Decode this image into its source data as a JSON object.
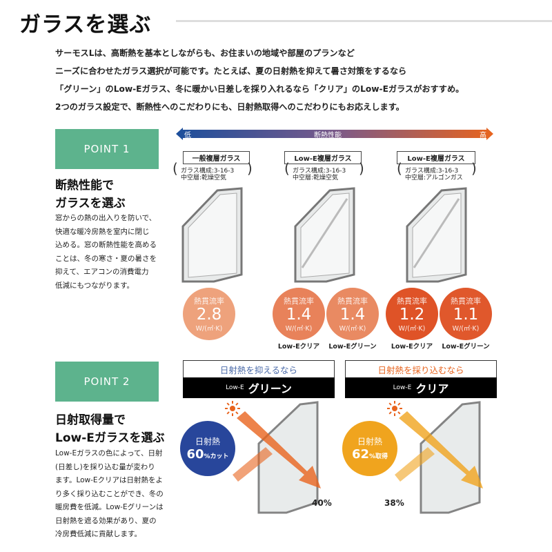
{
  "title": "ガラスを選ぶ",
  "intro": [
    "サーモスLは、高断熱を基本としながらも、お住まいの地域や部屋のプランなど",
    "ニーズに合わせたガラス選択が可能です。たとえば、夏の日射熱を抑えて暑さ対策をするなら",
    "「グリーン」のLow-Eガラス、冬に暖かい日差しを採り入れるなら「クリア」のLow-Eガラスがおすすめ。",
    "2つのガラス設定で、断熱性へのこだわりにも、日射熱取得へのこだわりにもお応えします。"
  ],
  "point1": {
    "label": "POINT 1",
    "heading": [
      "断熱性能で",
      "ガラスを選ぶ"
    ],
    "body": [
      "窓からの熱の出入りを防いで、",
      "快適な暖冷房熱を室内に閉じ",
      "込める。窓の断熱性能を高める",
      "ことは、冬の寒さ・夏の暑さを",
      "抑えて、エアコンの消費電力",
      "低減にもつながります。"
    ],
    "scale": {
      "low": "低",
      "label": "断熱性能",
      "high": "高",
      "colors": [
        "#1c4f9c",
        "#e8641e"
      ]
    },
    "glasses": [
      {
        "name": "一般複層ガラス",
        "spec": [
          "ガラス構成:3-16-3",
          "中空層:乾燥空気"
        ]
      },
      {
        "name": "Low-E複層ガラス",
        "spec": [
          "ガラス構成:3-16-3",
          "中空層:乾燥空気"
        ]
      },
      {
        "name": "Low-E複層ガラス",
        "spec": [
          "ガラス構成:3-16-3",
          "中空層:アルゴンガス"
        ]
      }
    ],
    "values": [
      {
        "key": "熱貫流率",
        "value": "2.8",
        "unit": "W/(㎡·K)",
        "label": "",
        "color": "#eea27c"
      },
      {
        "key": "熱貫流率",
        "value": "1.4",
        "unit": "W/(㎡·K)",
        "label": "Low-Eクリア",
        "color": "#e8825a"
      },
      {
        "key": "熱貫流率",
        "value": "1.4",
        "unit": "W/(㎡·K)",
        "label": "Low-Eグリーン",
        "color": "#e98a62"
      },
      {
        "key": "熱貫流率",
        "value": "1.2",
        "unit": "W/(㎡·K)",
        "label": "Low-Eクリア",
        "color": "#df5327"
      },
      {
        "key": "熱貫流率",
        "value": "1.1",
        "unit": "W/(㎡·K)",
        "label": "Low-Eグリーン",
        "color": "#e0582c"
      }
    ]
  },
  "point2": {
    "label": "POINT 2",
    "heading": [
      "日射取得量で",
      "Low-Eガラスを選ぶ"
    ],
    "body": [
      "Low-Eガラスの色によって、日射",
      "(日差し)を採り込む量が変わり",
      "ます。Low-Eクリアは日射熱をよ",
      "り多く採り込むことができ、冬の",
      "暖房費を低減。Low-Eグリーンは",
      "日射熱を遮る効果があり、夏の",
      "冷房費低減に貢献します。"
    ],
    "options": [
      {
        "top": "日射熱を抑えるなら",
        "topColor": "#4a6aa8",
        "small": "Low-E",
        "large": "グリーン",
        "circleTop": "日射熱",
        "circleValue": "60",
        "circleSuffix": "%カット",
        "circleColor": "#28469b",
        "transmit": "40%"
      },
      {
        "top": "日射熱を採り込むなら",
        "topColor": "#e8641e",
        "small": "Low-E",
        "large": "クリア",
        "circleTop": "日射熱",
        "circleValue": "62",
        "circleSuffix": "%取得",
        "circleColor": "#f0a41e",
        "transmit": "38%"
      }
    ]
  }
}
